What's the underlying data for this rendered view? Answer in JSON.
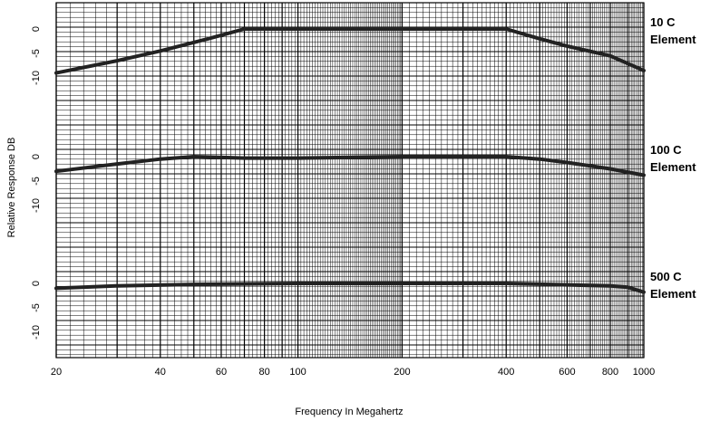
{
  "chart_data": {
    "type": "line",
    "xlabel": "Frequency In Megahertz",
    "ylabel": "Relative Response DB",
    "x_scale": "log",
    "xlim": [
      20,
      1000
    ],
    "x_ticks": [
      20,
      40,
      60,
      80,
      100,
      200,
      400,
      600,
      800,
      1000
    ],
    "y_ticks": [
      0,
      -5,
      -10
    ],
    "ylim_per_panel": [
      -12,
      3
    ],
    "grid": true,
    "line_color": "#222222",
    "grid_color": "#000000",
    "series": [
      {
        "name_line1": "10 C",
        "name_line2": "Element",
        "x": [
          20,
          30,
          40,
          55,
          70,
          100,
          200,
          400,
          500,
          600,
          800,
          1000
        ],
        "y": [
          -9,
          -6.5,
          -4.5,
          -2,
          0,
          0,
          0,
          0,
          -2,
          -3.5,
          -5.5,
          -8.5
        ]
      },
      {
        "name_line1": "100 C",
        "name_line2": "Element",
        "x": [
          20,
          30,
          40,
          50,
          70,
          100,
          200,
          400,
          500,
          600,
          800,
          1000
        ],
        "y": [
          -3,
          -1.5,
          -0.5,
          0,
          -0.3,
          -0.3,
          0,
          0,
          -0.5,
          -1.2,
          -2.5,
          -3.8
        ]
      },
      {
        "name_line1": "500 C",
        "name_line2": "Element",
        "x": [
          20,
          30,
          50,
          100,
          200,
          400,
          600,
          800,
          900,
          1000
        ],
        "y": [
          -1,
          -0.5,
          -0.2,
          0,
          0,
          0,
          -0.3,
          -0.5,
          -0.8,
          -1.8
        ]
      }
    ]
  }
}
